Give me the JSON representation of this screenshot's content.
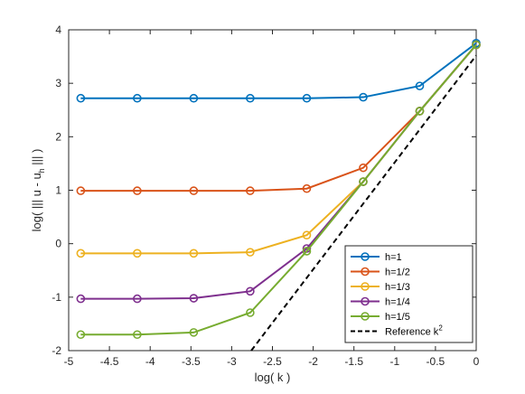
{
  "chart_data": {
    "type": "line",
    "xlabel": "log( k )",
    "ylabel_parts": {
      "before": "log( ||| u - u",
      "sub": "h",
      "after": " ||| )"
    },
    "xlim": [
      -5,
      0
    ],
    "ylim": [
      -2,
      4
    ],
    "xticks": [
      -5,
      -4.5,
      -4,
      -3.5,
      -3,
      -2.5,
      -2,
      -1.5,
      -1,
      -0.5,
      0
    ],
    "yticks": [
      -2,
      -1,
      0,
      1,
      2,
      3,
      4
    ],
    "xtick_labels": [
      "-5",
      "-4.5",
      "-4",
      "-3.5",
      "-3",
      "-2.5",
      "-2",
      "-1.5",
      "-1",
      "-0.5",
      "0"
    ],
    "ytick_labels": [
      "-2",
      "-1",
      "0",
      "1",
      "2",
      "3",
      "4"
    ],
    "x": [
      -4.852,
      -4.159,
      -3.466,
      -2.773,
      -2.079,
      -1.386,
      -0.693,
      0
    ],
    "series": [
      {
        "name": "h=1",
        "color": "#0072BD",
        "marker": "circle",
        "values": [
          2.72,
          2.72,
          2.72,
          2.72,
          2.72,
          2.74,
          2.95,
          3.75
        ]
      },
      {
        "name": "h=1/2",
        "color": "#D95319",
        "marker": "circle",
        "values": [
          0.99,
          0.99,
          0.99,
          0.99,
          1.03,
          1.42,
          2.48,
          3.72
        ]
      },
      {
        "name": "h=1/3",
        "color": "#EDB120",
        "marker": "circle",
        "values": [
          -0.18,
          -0.18,
          -0.18,
          -0.16,
          0.16,
          1.16,
          2.48,
          3.72
        ]
      },
      {
        "name": "h=1/4",
        "color": "#7E2F8E",
        "marker": "circle",
        "values": [
          -1.03,
          -1.03,
          -1.02,
          -0.89,
          -0.09,
          1.16,
          2.48,
          3.72
        ]
      },
      {
        "name": "h=1/5",
        "color": "#77AC30",
        "marker": "circle",
        "values": [
          -1.7,
          -1.7,
          -1.66,
          -1.29,
          -0.14,
          1.16,
          2.48,
          3.72
        ]
      }
    ],
    "reference": {
      "name_base": "Reference k",
      "name_sup": "2",
      "color": "#000000",
      "dash": "dashed",
      "x": [
        -2.76,
        0
      ],
      "values": [
        -2.0,
        3.52
      ]
    },
    "legend_position": "bottom-right",
    "grid": false
  }
}
